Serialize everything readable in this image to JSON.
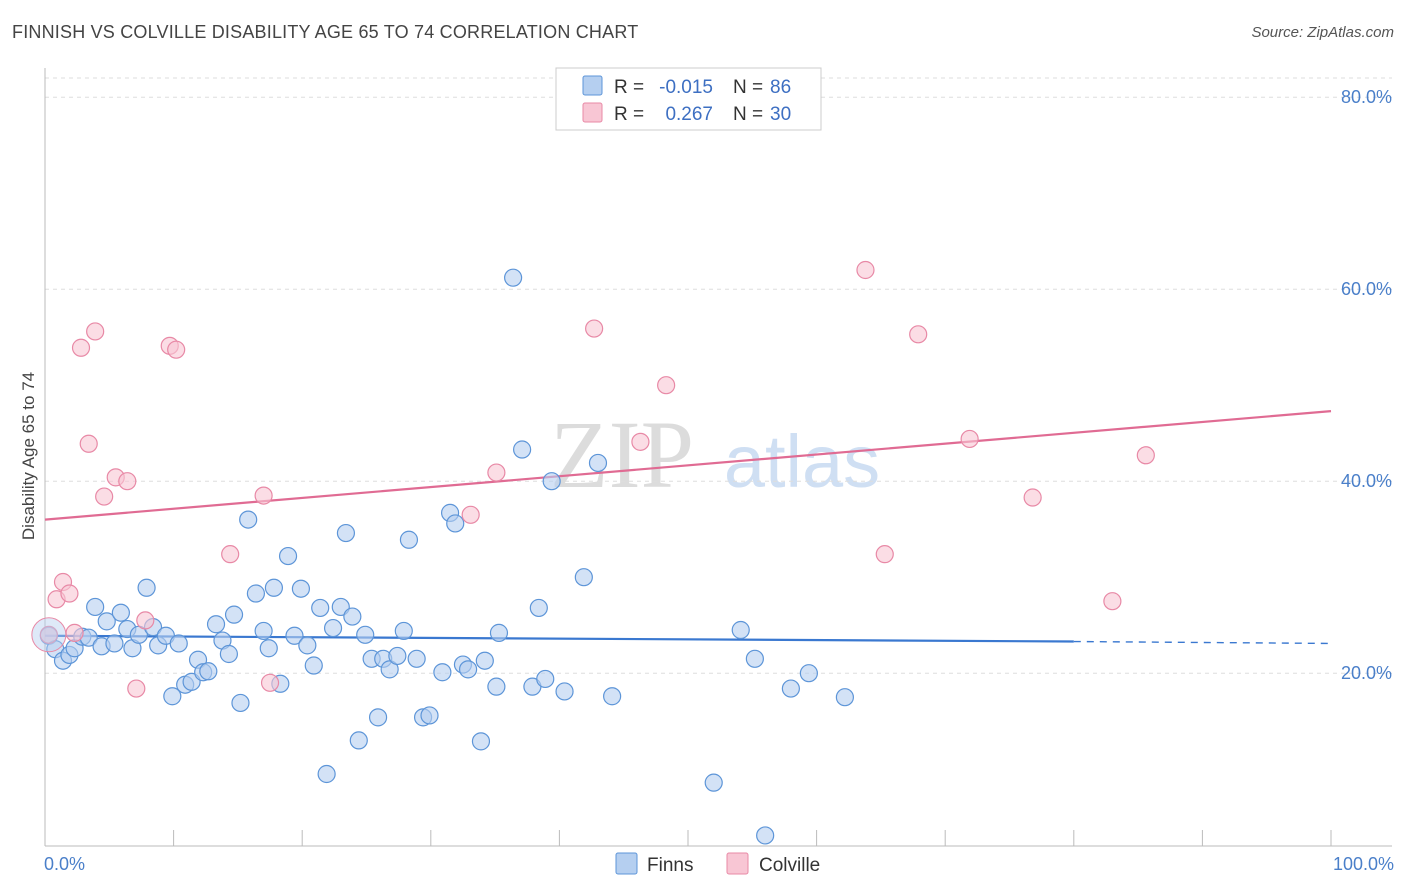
{
  "title": "FINNISH VS COLVILLE DISABILITY AGE 65 TO 74 CORRELATION CHART",
  "source": "Source: ZipAtlas.com",
  "watermark": {
    "zip": "ZIP",
    "atlas": "atlas"
  },
  "colors": {
    "finns_fill": "#b5cff0",
    "finns_stroke": "#5d95d8",
    "finns_line": "#3a78d0",
    "colville_fill": "#f8c6d4",
    "colville_stroke": "#e889a6",
    "colville_line": "#e06b93",
    "tick": "#4a7fc9",
    "grid": "#dddddd"
  },
  "legend": {
    "rows": [
      {
        "r_label": "R =",
        "r_value": "-0.015",
        "n_label": "N =",
        "n_value": "86"
      },
      {
        "r_label": "R =",
        "r_value": "0.267",
        "n_label": "N =",
        "n_value": "30"
      }
    ]
  },
  "chart_data": {
    "type": "scatter",
    "ylabel": "Disability Age 65 to 74",
    "xlim": [
      0,
      100
    ],
    "ylim": [
      2,
      82
    ],
    "x_ticks": [
      "0.0%",
      "100.0%"
    ],
    "y_ticks": [
      {
        "value": 20,
        "label": "20.0%"
      },
      {
        "value": 40,
        "label": "40.0%"
      },
      {
        "value": 60,
        "label": "60.0%"
      },
      {
        "value": 80,
        "label": "80.0%"
      }
    ],
    "legend_position": "top-center",
    "series": [
      {
        "name": "Finns",
        "trend": {
          "x0": 0,
          "y0": 23.9,
          "x1": 80,
          "y1": 23.3,
          "dash_to": 100,
          "dash_y": 23.1
        },
        "points": [
          [
            0.3,
            23.9
          ],
          [
            0.8,
            22.5
          ],
          [
            1.4,
            21.3
          ],
          [
            1.9,
            21.9
          ],
          [
            2.3,
            22.6
          ],
          [
            2.9,
            23.8
          ],
          [
            3.4,
            23.7
          ],
          [
            3.9,
            26.9
          ],
          [
            4.4,
            22.8
          ],
          [
            4.8,
            25.4
          ],
          [
            5.4,
            23.1
          ],
          [
            5.9,
            26.3
          ],
          [
            6.4,
            24.6
          ],
          [
            6.8,
            22.6
          ],
          [
            7.3,
            24.0
          ],
          [
            7.9,
            28.9
          ],
          [
            8.4,
            24.8
          ],
          [
            8.8,
            22.9
          ],
          [
            9.4,
            23.9
          ],
          [
            9.9,
            17.6
          ],
          [
            10.4,
            23.1
          ],
          [
            10.9,
            18.8
          ],
          [
            11.4,
            19.1
          ],
          [
            11.9,
            21.4
          ],
          [
            12.3,
            20.1
          ],
          [
            12.7,
            20.2
          ],
          [
            13.3,
            25.1
          ],
          [
            13.8,
            23.4
          ],
          [
            14.3,
            22.0
          ],
          [
            14.7,
            26.1
          ],
          [
            15.2,
            16.9
          ],
          [
            15.8,
            36.0
          ],
          [
            16.4,
            28.3
          ],
          [
            17.0,
            24.4
          ],
          [
            17.4,
            22.6
          ],
          [
            17.8,
            28.9
          ],
          [
            18.3,
            18.9
          ],
          [
            18.9,
            32.2
          ],
          [
            19.4,
            23.9
          ],
          [
            19.9,
            28.8
          ],
          [
            20.4,
            22.9
          ],
          [
            20.9,
            20.8
          ],
          [
            21.4,
            26.8
          ],
          [
            21.9,
            9.5
          ],
          [
            22.4,
            24.7
          ],
          [
            23.0,
            26.9
          ],
          [
            23.4,
            34.6
          ],
          [
            23.9,
            25.9
          ],
          [
            24.4,
            13.0
          ],
          [
            24.9,
            24.0
          ],
          [
            25.4,
            21.5
          ],
          [
            25.9,
            15.4
          ],
          [
            26.3,
            21.5
          ],
          [
            26.8,
            20.4
          ],
          [
            27.4,
            21.8
          ],
          [
            27.9,
            24.4
          ],
          [
            28.3,
            33.9
          ],
          [
            28.9,
            21.5
          ],
          [
            29.4,
            15.4
          ],
          [
            29.9,
            15.6
          ],
          [
            30.9,
            20.1
          ],
          [
            31.5,
            36.7
          ],
          [
            31.9,
            35.6
          ],
          [
            32.5,
            20.9
          ],
          [
            32.9,
            20.4
          ],
          [
            33.9,
            12.9
          ],
          [
            34.2,
            21.3
          ],
          [
            35.1,
            18.6
          ],
          [
            35.3,
            24.2
          ],
          [
            36.4,
            61.2
          ],
          [
            37.1,
            43.3
          ],
          [
            37.9,
            18.6
          ],
          [
            38.4,
            26.8
          ],
          [
            38.9,
            19.4
          ],
          [
            39.4,
            40.0
          ],
          [
            40.4,
            18.1
          ],
          [
            41.9,
            30.0
          ],
          [
            43.0,
            41.9
          ],
          [
            44.1,
            17.6
          ],
          [
            52.0,
            8.6
          ],
          [
            54.1,
            24.5
          ],
          [
            55.2,
            21.5
          ],
          [
            56.0,
            3.1
          ],
          [
            58.0,
            18.4
          ],
          [
            59.4,
            20.0
          ],
          [
            62.2,
            17.5
          ]
        ]
      },
      {
        "name": "Colville",
        "trend": {
          "x0": 0,
          "y0": 36.0,
          "x1": 100,
          "y1": 47.3
        },
        "points": [
          [
            0.3,
            24.0
          ],
          [
            0.9,
            27.7
          ],
          [
            1.4,
            29.5
          ],
          [
            1.9,
            28.3
          ],
          [
            2.3,
            24.2
          ],
          [
            2.8,
            53.9
          ],
          [
            3.4,
            43.9
          ],
          [
            3.9,
            55.6
          ],
          [
            4.6,
            38.4
          ],
          [
            5.5,
            40.4
          ],
          [
            6.4,
            40.0
          ],
          [
            7.1,
            18.4
          ],
          [
            7.8,
            25.5
          ],
          [
            9.7,
            54.1
          ],
          [
            10.2,
            53.7
          ],
          [
            14.4,
            32.4
          ],
          [
            17.0,
            38.5
          ],
          [
            17.5,
            19.0
          ],
          [
            33.1,
            36.5
          ],
          [
            35.1,
            40.9
          ],
          [
            42.7,
            55.9
          ],
          [
            46.3,
            44.1
          ],
          [
            48.3,
            50.0
          ],
          [
            63.8,
            62.0
          ],
          [
            65.3,
            32.4
          ],
          [
            67.9,
            55.3
          ],
          [
            71.9,
            44.4
          ],
          [
            76.8,
            38.3
          ],
          [
            83.0,
            27.5
          ],
          [
            85.6,
            42.7
          ]
        ]
      }
    ]
  },
  "bottom_legend": [
    {
      "label": "Finns"
    },
    {
      "label": "Colville"
    }
  ]
}
